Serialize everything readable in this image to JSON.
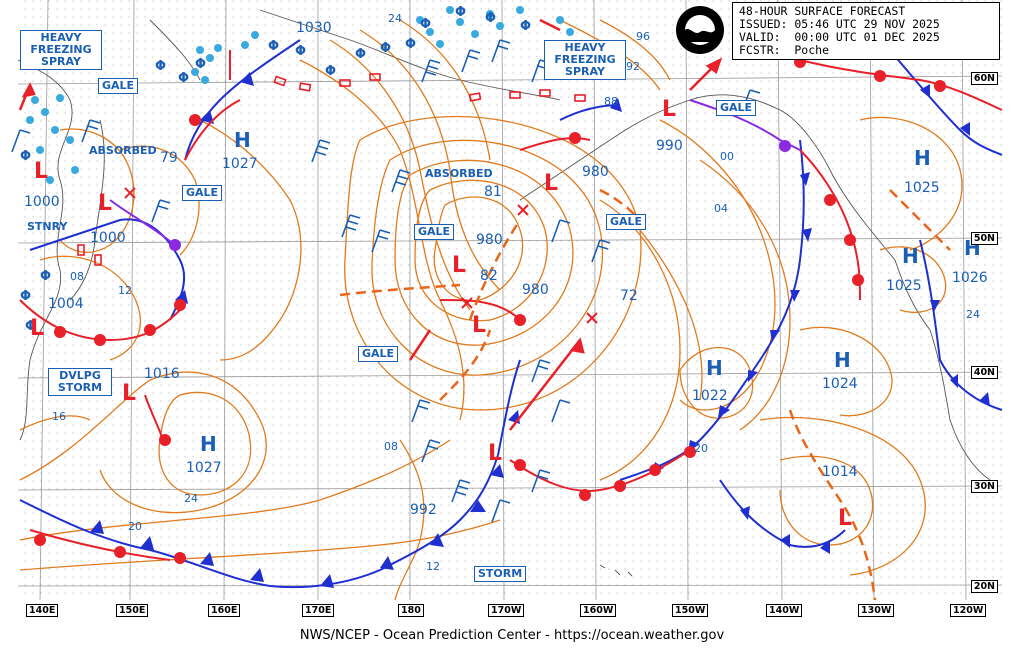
{
  "header": {
    "line1": "48-HOUR SURFACE FORECAST",
    "line2": "ISSUED: 05:46 UTC 29 NOV 2025",
    "line3": "VALID:  00:00 UTC 01 DEC 2025",
    "line4": "FCSTR:  Poche"
  },
  "footer": "NWS/NCEP - Ocean Prediction Center - https://ocean.weather.gov",
  "logo_icon": "noaa-logo-icon",
  "colors": {
    "isobar": "#e07b1e",
    "warm_front": "#e8202a",
    "cold_front": "#1f2fd0",
    "occluded_front": "#8a2be2",
    "label_blue": "#1a5fb4",
    "grid": "#9a9a9a"
  },
  "tags": {
    "heavy_freezing_spray_west": "HEAVY FREEZING SPRAY",
    "heavy_freezing_spray_east": "HEAVY FREEZING SPRAY",
    "gale_1": "GALE",
    "gale_2": "GALE",
    "gale_3": "GALE",
    "gale_4": "GALE",
    "gale_5": "GALE",
    "gale_6": "GALE",
    "dvlpg_storm": "DVLPG STORM",
    "storm": "STORM",
    "stnry": "STNRY",
    "absorbed_1": "ABSORBED",
    "absorbed_2": "ABSORBED"
  },
  "highs": [
    {
      "label": "H",
      "pressure": "1027"
    },
    {
      "label": "H",
      "pressure": "1027"
    },
    {
      "label": "H",
      "pressure": "1022"
    },
    {
      "label": "H",
      "pressure": "1024"
    },
    {
      "label": "H",
      "pressure": "1025"
    },
    {
      "label": "H",
      "pressure": "1025"
    },
    {
      "label": "H",
      "pressure": "1026"
    }
  ],
  "lows": [
    {
      "label": "L",
      "pressure": "1000"
    },
    {
      "label": "L",
      "pressure": "1000"
    },
    {
      "label": "L",
      "pressure": "1004"
    },
    {
      "label": "L",
      "pressure": "1016"
    },
    {
      "label": "L",
      "pressure": "980"
    },
    {
      "label": "L",
      "pressure": "980"
    },
    {
      "label": "L",
      "pressure": "980"
    },
    {
      "label": "L",
      "pressure": "990"
    },
    {
      "label": "L",
      "pressure": "992"
    },
    {
      "label": "L",
      "pressure": "1014"
    }
  ],
  "isobar_labels": [
    "1030",
    "24",
    "96",
    "92",
    "88",
    "79",
    "81",
    "82",
    "72",
    "08",
    "16",
    "24",
    "20",
    "12",
    "08",
    "12",
    "04",
    "00",
    "20",
    "24"
  ],
  "latitudes": [
    "60N",
    "50N",
    "40N",
    "30N",
    "20N"
  ],
  "longitudes": [
    "140E",
    "150E",
    "160E",
    "170E",
    "180",
    "170W",
    "160W",
    "150W",
    "140W",
    "130W",
    "120W"
  ]
}
